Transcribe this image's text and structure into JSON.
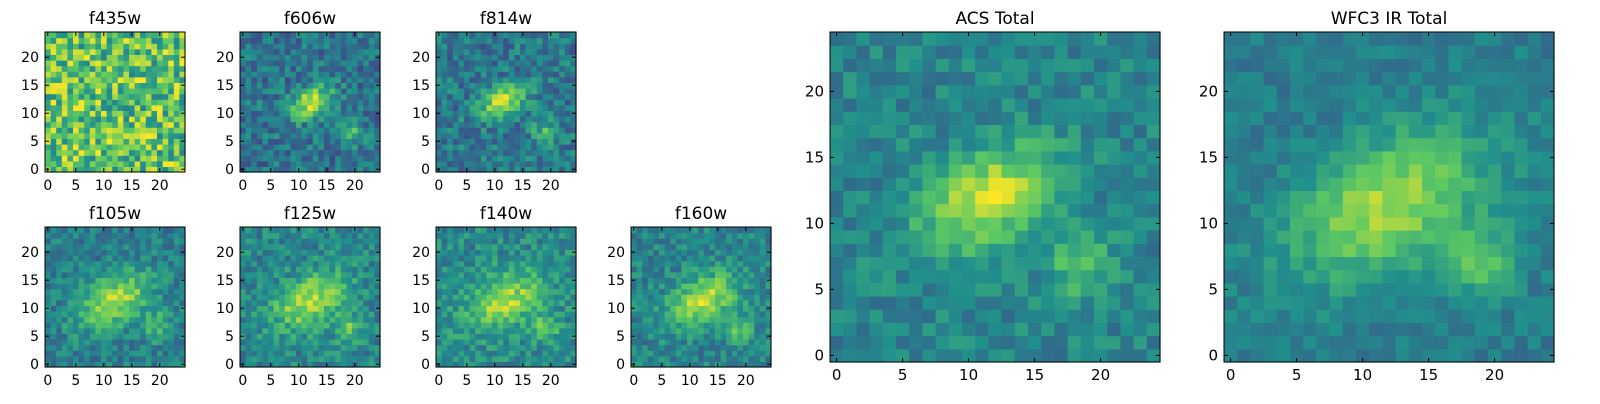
{
  "colormap": [
    "#440154",
    "#3b528b",
    "#21918c",
    "#5ec962",
    "#fde725"
  ],
  "chart_data": [
    {
      "type": "heatmap",
      "title": "f435w",
      "xlim": [
        0,
        24
      ],
      "ylim": [
        0,
        24
      ],
      "x_ticks": [
        0,
        5,
        10,
        15,
        20
      ],
      "y_ticks": [
        0,
        5,
        10,
        15,
        20
      ],
      "grid": false,
      "blob": {
        "cx": 12,
        "cy": 12,
        "sx": 4,
        "sy": 2.5,
        "amp": 0.0
      },
      "blob2": {
        "cx": 19,
        "cy": 6.5,
        "sx": 1.5,
        "sy": 1.5,
        "amp": 0.0
      },
      "base": 0.72,
      "noise": 0.28
    },
    {
      "type": "heatmap",
      "title": "f606w",
      "xlim": [
        0,
        24
      ],
      "ylim": [
        0,
        24
      ],
      "x_ticks": [
        0,
        5,
        10,
        15,
        20
      ],
      "y_ticks": [
        0,
        5,
        10,
        15,
        20
      ],
      "grid": false,
      "blob": {
        "cx": 12,
        "cy": 12,
        "sx": 3,
        "sy": 1.8,
        "amp": 0.5
      },
      "blob2": {
        "cx": 19,
        "cy": 6.5,
        "sx": 1.5,
        "sy": 1.5,
        "amp": 0.3
      },
      "base": 0.38,
      "noise": 0.16
    },
    {
      "type": "heatmap",
      "title": "f814w",
      "xlim": [
        0,
        24
      ],
      "ylim": [
        0,
        24
      ],
      "x_ticks": [
        0,
        5,
        10,
        15,
        20
      ],
      "y_ticks": [
        0,
        5,
        10,
        15,
        20
      ],
      "grid": false,
      "blob": {
        "cx": 11.5,
        "cy": 12,
        "sx": 3,
        "sy": 1.8,
        "amp": 0.5
      },
      "blob2": {
        "cx": 19,
        "cy": 6.5,
        "sx": 1.5,
        "sy": 1.5,
        "amp": 0.28
      },
      "base": 0.4,
      "noise": 0.16
    },
    {
      "type": "heatmap",
      "title": "f105w",
      "xlim": [
        0,
        24
      ],
      "ylim": [
        0,
        24
      ],
      "x_ticks": [
        0,
        5,
        10,
        15,
        20
      ],
      "y_ticks": [
        0,
        5,
        10,
        15,
        20
      ],
      "grid": false,
      "blob": {
        "cx": 12,
        "cy": 11.5,
        "sx": 5,
        "sy": 3,
        "amp": 0.45
      },
      "blob2": {
        "cx": 19.5,
        "cy": 7,
        "sx": 1.8,
        "sy": 1.8,
        "amp": 0.25
      },
      "base": 0.42,
      "noise": 0.13
    },
    {
      "type": "heatmap",
      "title": "f125w",
      "xlim": [
        0,
        24
      ],
      "ylim": [
        0,
        24
      ],
      "x_ticks": [
        0,
        5,
        10,
        15,
        20
      ],
      "y_ticks": [
        0,
        5,
        10,
        15,
        20
      ],
      "grid": false,
      "blob": {
        "cx": 12,
        "cy": 11.5,
        "sx": 5,
        "sy": 3,
        "amp": 0.45
      },
      "blob2": {
        "cx": 19,
        "cy": 6.5,
        "sx": 1.8,
        "sy": 1.8,
        "amp": 0.25
      },
      "base": 0.45,
      "noise": 0.14
    },
    {
      "type": "heatmap",
      "title": "f140w",
      "xlim": [
        0,
        24
      ],
      "ylim": [
        0,
        24
      ],
      "x_ticks": [
        0,
        5,
        10,
        15,
        20
      ],
      "y_ticks": [
        0,
        5,
        10,
        15,
        20
      ],
      "grid": false,
      "blob": {
        "cx": 12,
        "cy": 11.5,
        "sx": 5,
        "sy": 3,
        "amp": 0.4
      },
      "blob2": {
        "cx": 19,
        "cy": 6.5,
        "sx": 1.8,
        "sy": 1.8,
        "amp": 0.25
      },
      "base": 0.47,
      "noise": 0.14
    },
    {
      "type": "heatmap",
      "title": "f160w",
      "xlim": [
        0,
        24
      ],
      "ylim": [
        0,
        24
      ],
      "x_ticks": [
        0,
        5,
        10,
        15,
        20
      ],
      "y_ticks": [
        0,
        5,
        10,
        15,
        20
      ],
      "grid": false,
      "blob": {
        "cx": 12.5,
        "cy": 11.5,
        "sx": 4.5,
        "sy": 2.8,
        "amp": 0.45
      },
      "blob2": {
        "cx": 19,
        "cy": 6.5,
        "sx": 1.8,
        "sy": 1.8,
        "amp": 0.25
      },
      "base": 0.45,
      "noise": 0.13
    },
    {
      "type": "heatmap",
      "title": "ACS Total",
      "xlim": [
        0,
        24
      ],
      "ylim": [
        0,
        24
      ],
      "x_ticks": [
        0,
        5,
        10,
        15,
        20
      ],
      "y_ticks": [
        0,
        5,
        10,
        15,
        20
      ],
      "grid": false,
      "blob": {
        "cx": 11.5,
        "cy": 12,
        "sx": 4,
        "sy": 2.3,
        "amp": 0.48
      },
      "blob2": {
        "cx": 18.5,
        "cy": 7,
        "sx": 1.8,
        "sy": 1.8,
        "amp": 0.28
      },
      "base": 0.45,
      "noise": 0.11
    },
    {
      "type": "heatmap",
      "title": "WFC3 IR Total",
      "xlim": [
        0,
        24
      ],
      "ylim": [
        0,
        24
      ],
      "x_ticks": [
        0,
        5,
        10,
        15,
        20
      ],
      "y_ticks": [
        0,
        5,
        10,
        15,
        20
      ],
      "grid": false,
      "blob": {
        "cx": 12,
        "cy": 11.5,
        "sx": 5.5,
        "sy": 3.2,
        "amp": 0.45
      },
      "blob2": {
        "cx": 19,
        "cy": 7,
        "sx": 1.8,
        "sy": 1.8,
        "amp": 0.3
      },
      "base": 0.42,
      "noise": 0.08
    }
  ]
}
